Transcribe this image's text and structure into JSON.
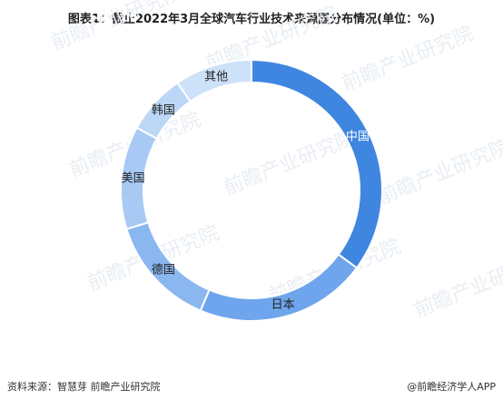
{
  "title": "图表1：截止2022年3月全球汽车行业技术来源国分布情况(单位：%)",
  "source": "资料来源：智慧芽 前瞻产业研究院",
  "brand": "@前瞻经济学人APP",
  "watermark": "前瞻产业研究院",
  "chart_data": {
    "type": "pie",
    "donut": true,
    "categories": [
      "中国",
      "日本",
      "德国",
      "美国",
      "韩国",
      "其他"
    ],
    "values": [
      33,
      20,
      13,
      12,
      7,
      9
    ],
    "colors": [
      "#3f86e0",
      "#6ea5ec",
      "#8bb7f0",
      "#a7c9f4",
      "#bcd6f6",
      "#cde1f8"
    ],
    "label_colors": [
      "#ffffff",
      "#222222",
      "#222222",
      "#222222",
      "#222222",
      "#222222"
    ]
  }
}
